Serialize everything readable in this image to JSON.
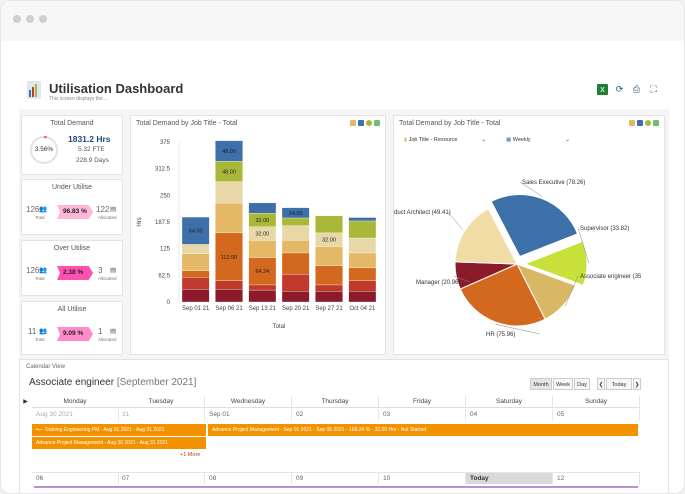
{
  "window": {
    "title": "Utilisation Dashboard",
    "subtitle": "This screen displays the ..."
  },
  "cards": {
    "total_demand": {
      "title": "Total Demand",
      "percent": "3.56%",
      "percent_value": 3.56,
      "hours": "1831.2 Hrs",
      "fte": "5.32 FTE",
      "days": "228.9 Days"
    },
    "under_utilise": {
      "title": "Under Utilise",
      "total": "126",
      "total_label": "Total",
      "badge": "96.83 %",
      "badge_value": 96.83,
      "allocated": "122",
      "allocated_label": "Allocated"
    },
    "over_utilise": {
      "title": "Over Utilise",
      "total": "126",
      "total_label": "Total",
      "badge": "2.38 %",
      "badge_value": 2.38,
      "allocated": "3",
      "allocated_label": "Allocated"
    },
    "all_utilise": {
      "title": "All Utilise",
      "total": "11",
      "total_label": "Total",
      "badge": "9.09 %",
      "badge_value": 9.09,
      "allocated": "1",
      "allocated_label": "Allocated"
    }
  },
  "bar_title": "Total Demand by Job Title - Total",
  "pie_title": "Total Demand by Job Title - Total",
  "pie_selects": {
    "group": "Job Title - Resource",
    "period": "Weekly"
  },
  "colors": {
    "accent": "#1f4e79",
    "pink": "#ff4fb0",
    "pink_light": "#ff8cc8",
    "pink_soft": "#ffb6d9",
    "orange": "#f39200",
    "blue": "#3d6fa8"
  },
  "chart_data": [
    {
      "type": "bar",
      "title": "Total Demand by Job Title - Total",
      "xlabel": "Total",
      "ylabel": "Hrs",
      "ylim": [
        0,
        375
      ],
      "yticks": [
        0,
        62.5,
        125,
        187.5,
        250,
        312.5,
        375
      ],
      "categories": [
        "Sep 01 21",
        "Sep 06 21",
        "Sep 13 21",
        "Sep 20 21",
        "Sep 27 21",
        "Oct 04 21"
      ],
      "series": [
        {
          "name": "Associate engineer",
          "color": "#8b1a2b",
          "values": [
            30,
            30,
            28,
            25,
            25,
            25
          ],
          "labels": [
            "",
            "",
            "",
            "",
            "",
            ""
          ]
        },
        {
          "name": "HR",
          "color": "#c0392b",
          "values": [
            28,
            20,
            12,
            40,
            15,
            25
          ],
          "labels": [
            "",
            "",
            "",
            "",
            "",
            ""
          ]
        },
        {
          "name": "Manager",
          "color": "#d2691e",
          "values": [
            15,
            112,
            64.24,
            50,
            45,
            30
          ],
          "labels": [
            "",
            "112.00",
            "64.24",
            "",
            "",
            ""
          ]
        },
        {
          "name": "Product Architect",
          "color": "#e4b866",
          "values": [
            40,
            70,
            40,
            30,
            45,
            35
          ],
          "labels": [
            "",
            "",
            "",
            "",
            "",
            ""
          ]
        },
        {
          "name": "Supervisor",
          "color": "#e8d8a8",
          "values": [
            22,
            50,
            32,
            34,
            32,
            35
          ],
          "labels": [
            "",
            "",
            "32.00",
            "",
            "32.00",
            ""
          ]
        },
        {
          "name": "Sales Executive",
          "color": "#aab83a",
          "values": [
            0,
            48,
            32,
            18,
            40,
            40
          ],
          "labels": [
            "",
            "48.00",
            "32.00",
            "",
            "",
            ""
          ]
        },
        {
          "name": "Associate engineer",
          "color": "#3d6fa8",
          "values": [
            64,
            48,
            24,
            24,
            0,
            8
          ],
          "labels": [
            "64.00",
            "48.00",
            "",
            "24.00",
            "",
            ""
          ]
        }
      ]
    },
    {
      "type": "pie",
      "title": "Total Demand by Job Title - Total",
      "slices": [
        {
          "label": "Sales Executive (78.26)",
          "value": 78.26,
          "color": "#3d6fa8",
          "explode": true
        },
        {
          "label": "Supervisor (33.82)",
          "value": 33.82,
          "color": "#c7e03a",
          "explode": true
        },
        {
          "label": "Associate engineer (35",
          "value": 35,
          "color": "#d9b865",
          "explode": false
        },
        {
          "label": "HR (75.96)",
          "value": 75.96,
          "color": "#d2691e",
          "explode": false
        },
        {
          "label": "Manager (20.96)",
          "value": 20.96,
          "color": "#8b1a2b",
          "explode": false
        },
        {
          "label": "duct Architect (49.41)",
          "value": 49.41,
          "color": "#f2dca6",
          "explode": false
        }
      ]
    }
  ],
  "calendar": {
    "label": "Calendar View",
    "title": "Associate engineer",
    "month": "[September 2021]",
    "views": [
      "Month",
      "Week",
      "Day"
    ],
    "today_btn": "Today",
    "prev_btn": "❮",
    "next_btn": "❯",
    "days": [
      "Monday",
      "Tuesday",
      "Wednesday",
      "Thursday",
      "Friday",
      "Saturday",
      "Sunday"
    ],
    "week1": [
      "Aug 30 2021",
      "31",
      "Sep 01",
      "02",
      "03",
      "04",
      "05"
    ],
    "week2": [
      "06",
      "07",
      "08",
      "09",
      "10",
      "Today",
      "12"
    ],
    "events": [
      "Training Engineering PM - Aug 01 2021 - Aug 31 2021",
      "Advance Project Management - Sep 01 2021 - Sep 05 2021 - 168.24 % - 32.00 Hrs - Not Started",
      "Advance Project Management - Aug 30 2021 - Aug 31 2021"
    ],
    "more": "+1 More"
  }
}
